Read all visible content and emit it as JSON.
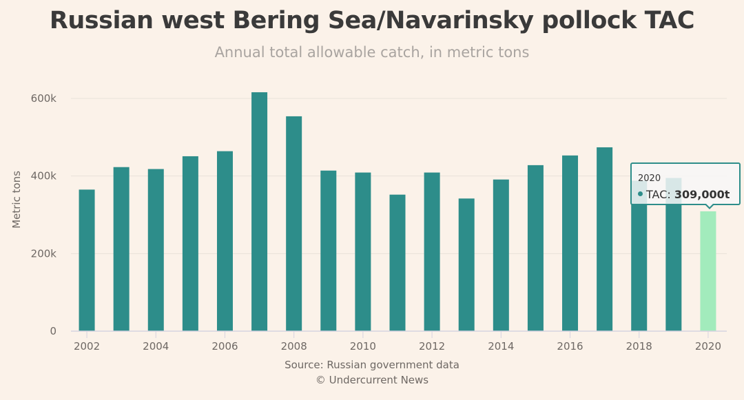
{
  "chart_data": {
    "type": "bar",
    "title": "Russian west Bering Sea/Navarinsky pollock TAC",
    "subtitle": "Annual total allowable catch, in metric tons",
    "xlabel": "",
    "ylabel": "Metric tons",
    "categories": [
      2002,
      2003,
      2004,
      2005,
      2006,
      2007,
      2008,
      2009,
      2010,
      2011,
      2012,
      2013,
      2014,
      2015,
      2016,
      2017,
      2018,
      2019,
      2020
    ],
    "series": [
      {
        "name": "TAC",
        "values": [
          365000,
          423000,
          418000,
          451000,
          464000,
          616000,
          554000,
          414000,
          409000,
          352000,
          409000,
          342000,
          391000,
          428000,
          453000,
          474000,
          388000,
          395000,
          309000
        ]
      }
    ],
    "ylim": [
      0,
      640000
    ],
    "yticks": [
      0,
      200000,
      400000,
      600000
    ],
    "ytick_labels": [
      "0",
      "200k",
      "400k",
      "600k"
    ],
    "xtick_labels": [
      "2002",
      "2004",
      "2006",
      "2008",
      "2010",
      "2012",
      "2014",
      "2016",
      "2018",
      "2020"
    ],
    "grid": true,
    "colors": {
      "bar": "#2d8d8a",
      "highlight": "#a2ebbc",
      "grid": "#e9e1d9",
      "background": "#fbf2e9"
    },
    "highlighted_category": 2020,
    "tooltip": {
      "year": "2020",
      "label": "TAC: ",
      "value": "309,000t"
    }
  },
  "credits": {
    "source": "Source: Russian government data",
    "copyright": "© Undercurrent News"
  }
}
